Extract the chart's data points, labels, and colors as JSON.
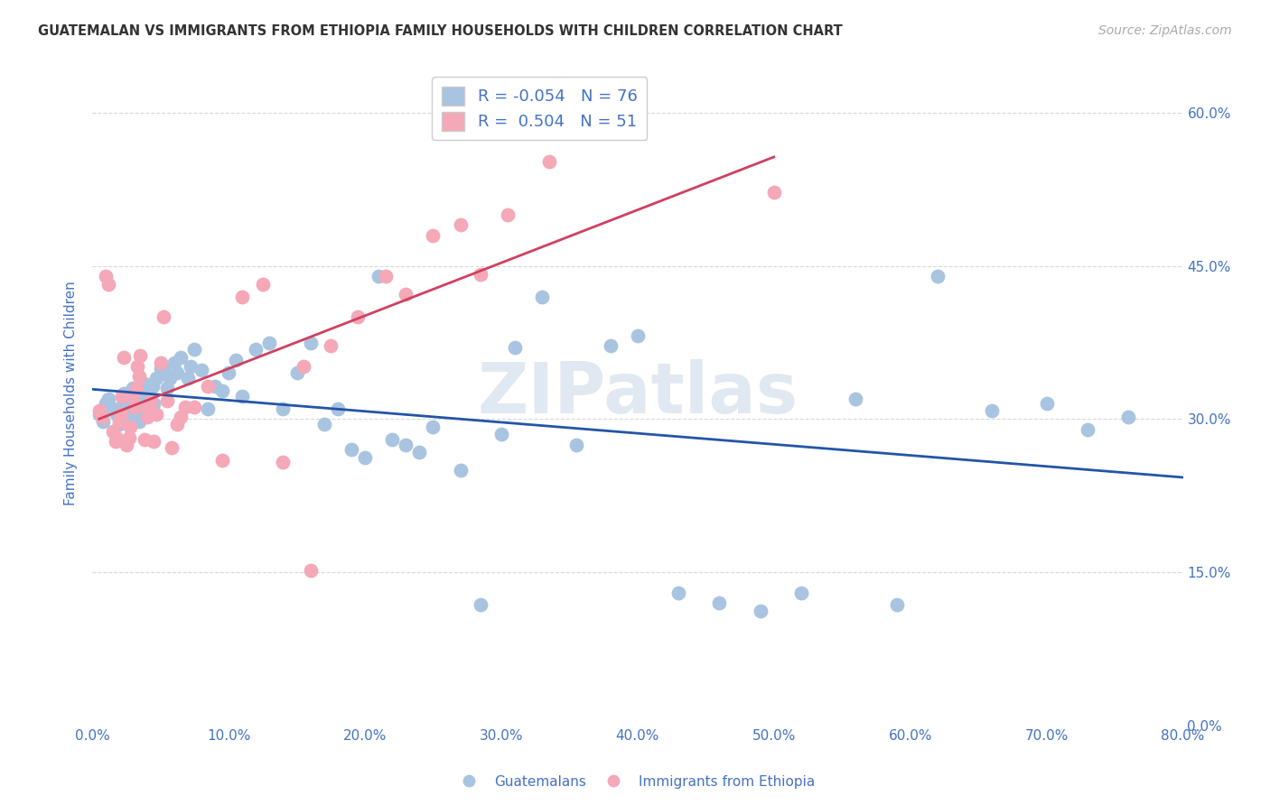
{
  "title": "GUATEMALAN VS IMMIGRANTS FROM ETHIOPIA FAMILY HOUSEHOLDS WITH CHILDREN CORRELATION CHART",
  "source": "Source: ZipAtlas.com",
  "ylabel": "Family Households with Children",
  "xlabel_ticks": [
    "0.0%",
    "10.0%",
    "20.0%",
    "30.0%",
    "40.0%",
    "50.0%",
    "60.0%",
    "70.0%",
    "80.0%"
  ],
  "ylabel_ticks": [
    "0.0%",
    "15.0%",
    "30.0%",
    "45.0%",
    "60.0%"
  ],
  "xlim": [
    0.0,
    0.8
  ],
  "ylim": [
    0.0,
    0.65
  ],
  "blue_color": "#a8c4e0",
  "pink_color": "#f4a8b8",
  "blue_line_color": "#2255aa",
  "pink_line_color": "#d04060",
  "legend_R_blue": "-0.054",
  "legend_N_blue": "76",
  "legend_R_pink": "0.504",
  "legend_N_pink": "51",
  "blue_scatter_x": [
    0.005,
    0.008,
    0.01,
    0.012,
    0.015,
    0.018,
    0.02,
    0.021,
    0.022,
    0.023,
    0.025,
    0.028,
    0.03,
    0.031,
    0.032,
    0.033,
    0.034,
    0.035,
    0.038,
    0.04,
    0.041,
    0.042,
    0.043,
    0.044,
    0.045,
    0.047,
    0.05,
    0.052,
    0.055,
    0.057,
    0.06,
    0.062,
    0.065,
    0.07,
    0.072,
    0.075,
    0.08,
    0.085,
    0.09,
    0.095,
    0.1,
    0.105,
    0.11,
    0.12,
    0.13,
    0.14,
    0.15,
    0.16,
    0.17,
    0.18,
    0.19,
    0.2,
    0.21,
    0.22,
    0.23,
    0.24,
    0.25,
    0.27,
    0.285,
    0.3,
    0.31,
    0.33,
    0.355,
    0.38,
    0.4,
    0.43,
    0.46,
    0.49,
    0.52,
    0.56,
    0.59,
    0.62,
    0.66,
    0.7,
    0.73,
    0.76
  ],
  "blue_scatter_y": [
    0.305,
    0.298,
    0.315,
    0.32,
    0.31,
    0.305,
    0.295,
    0.312,
    0.308,
    0.325,
    0.318,
    0.302,
    0.33,
    0.315,
    0.308,
    0.322,
    0.298,
    0.31,
    0.335,
    0.312,
    0.325,
    0.318,
    0.308,
    0.332,
    0.315,
    0.34,
    0.35,
    0.348,
    0.33,
    0.34,
    0.355,
    0.345,
    0.36,
    0.34,
    0.352,
    0.368,
    0.348,
    0.31,
    0.332,
    0.328,
    0.345,
    0.358,
    0.322,
    0.368,
    0.375,
    0.31,
    0.345,
    0.375,
    0.295,
    0.31,
    0.27,
    0.262,
    0.44,
    0.28,
    0.275,
    0.268,
    0.292,
    0.25,
    0.118,
    0.285,
    0.37,
    0.42,
    0.275,
    0.372,
    0.382,
    0.13,
    0.12,
    0.112,
    0.13,
    0.32,
    0.118,
    0.44,
    0.308,
    0.315,
    0.29,
    0.302
  ],
  "pink_scatter_x": [
    0.005,
    0.007,
    0.01,
    0.012,
    0.015,
    0.017,
    0.018,
    0.02,
    0.021,
    0.022,
    0.023,
    0.025,
    0.027,
    0.028,
    0.03,
    0.031,
    0.032,
    0.033,
    0.034,
    0.035,
    0.038,
    0.04,
    0.041,
    0.043,
    0.045,
    0.047,
    0.05,
    0.052,
    0.055,
    0.058,
    0.062,
    0.065,
    0.068,
    0.075,
    0.085,
    0.095,
    0.11,
    0.125,
    0.14,
    0.155,
    0.16,
    0.175,
    0.195,
    0.215,
    0.23,
    0.25,
    0.27,
    0.285,
    0.305,
    0.335,
    0.5
  ],
  "pink_scatter_y": [
    0.308,
    0.302,
    0.44,
    0.432,
    0.288,
    0.278,
    0.282,
    0.298,
    0.305,
    0.322,
    0.36,
    0.275,
    0.282,
    0.292,
    0.322,
    0.312,
    0.33,
    0.352,
    0.342,
    0.362,
    0.28,
    0.302,
    0.312,
    0.318,
    0.278,
    0.305,
    0.355,
    0.4,
    0.318,
    0.272,
    0.295,
    0.302,
    0.312,
    0.312,
    0.332,
    0.26,
    0.42,
    0.432,
    0.258,
    0.352,
    0.152,
    0.372,
    0.4,
    0.44,
    0.422,
    0.48,
    0.49,
    0.442,
    0.5,
    0.552,
    0.522
  ],
  "background_color": "#ffffff",
  "grid_color": "#d8d8d8",
  "title_color": "#333333",
  "axis_color": "#4472c4",
  "watermark": "ZIPatlas"
}
